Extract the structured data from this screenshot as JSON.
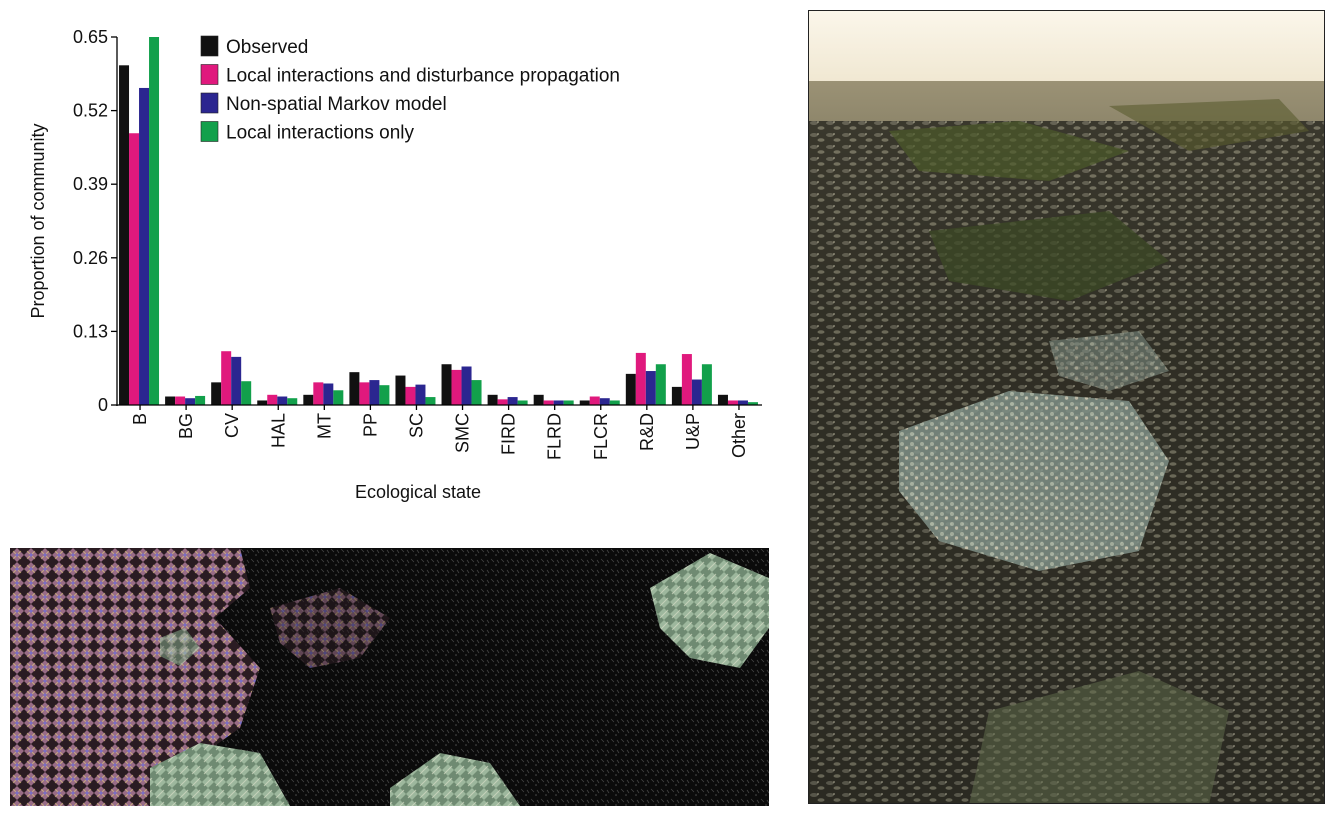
{
  "chart_data": {
    "type": "bar",
    "title": "",
    "xlabel": "Ecological state",
    "ylabel": "Proportion of community",
    "ylim": [
      0,
      0.65
    ],
    "yticks": [
      "0",
      "0.13",
      "0.26",
      "0.39",
      "0.52",
      "0.65"
    ],
    "grid": false,
    "legend_position": "top-right",
    "categories": [
      "B",
      "BG",
      "CV",
      "HAL",
      "MT",
      "PP",
      "SC",
      "SMC",
      "FIRD",
      "FLRD",
      "FLCR",
      "R&D",
      "U&P",
      "Other"
    ],
    "series": [
      {
        "name": "Observed",
        "color": "#111111",
        "values": [
          0.6,
          0.015,
          0.04,
          0.008,
          0.018,
          0.058,
          0.052,
          0.072,
          0.018,
          0.018,
          0.008,
          0.055,
          0.032,
          0.018
        ]
      },
      {
        "name": "Local interactions and disturbance propagation",
        "color": "#e0197d",
        "values": [
          0.48,
          0.015,
          0.095,
          0.018,
          0.04,
          0.04,
          0.032,
          0.062,
          0.01,
          0.008,
          0.015,
          0.092,
          0.09,
          0.008
        ]
      },
      {
        "name": "Non-spatial Markov model",
        "color": "#2b2690",
        "values": [
          0.56,
          0.012,
          0.085,
          0.015,
          0.038,
          0.044,
          0.036,
          0.068,
          0.014,
          0.008,
          0.012,
          0.06,
          0.045,
          0.008
        ]
      },
      {
        "name": "Local interactions only",
        "color": "#12a04b",
        "values": [
          0.65,
          0.016,
          0.042,
          0.012,
          0.026,
          0.035,
          0.014,
          0.044,
          0.008,
          0.008,
          0.008,
          0.072,
          0.072,
          0.005
        ]
      }
    ]
  },
  "panels": {
    "simulation": "cellular-automaton-map",
    "photo": "rocky-intertidal-mussel-bed-photo"
  }
}
